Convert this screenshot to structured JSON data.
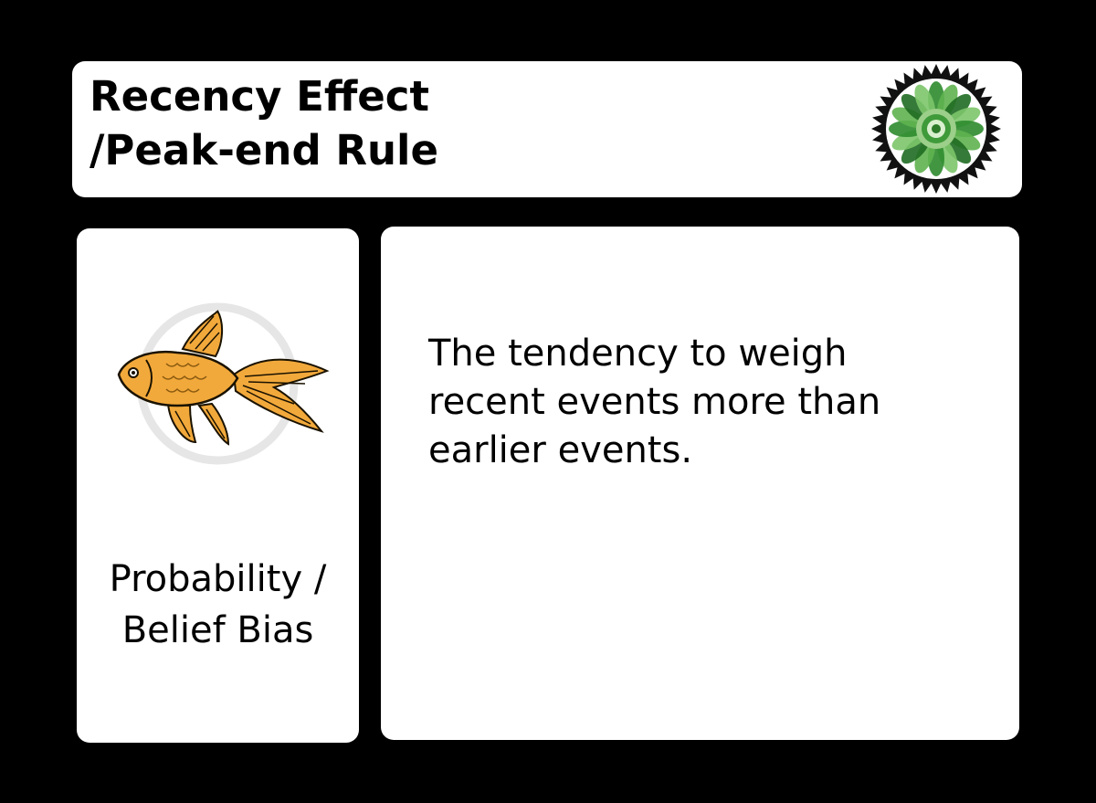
{
  "card": {
    "title": {
      "line1": "Recency Effect",
      "line2": "/Peak-end Rule"
    },
    "badge_icon": "green-leaf-seal-icon",
    "illustration_icon": "goldfish-icon",
    "category": {
      "line1": "Probability /",
      "line2": "Belief Bias"
    },
    "description": {
      "line1": "The tendency to weigh",
      "line2": "recent events more than",
      "line3": "earlier events."
    }
  },
  "colors": {
    "background": "#000000",
    "panel": "#ffffff",
    "text": "#000000",
    "fish": "#f2a93b",
    "badge_green": "#2e8b2e"
  }
}
